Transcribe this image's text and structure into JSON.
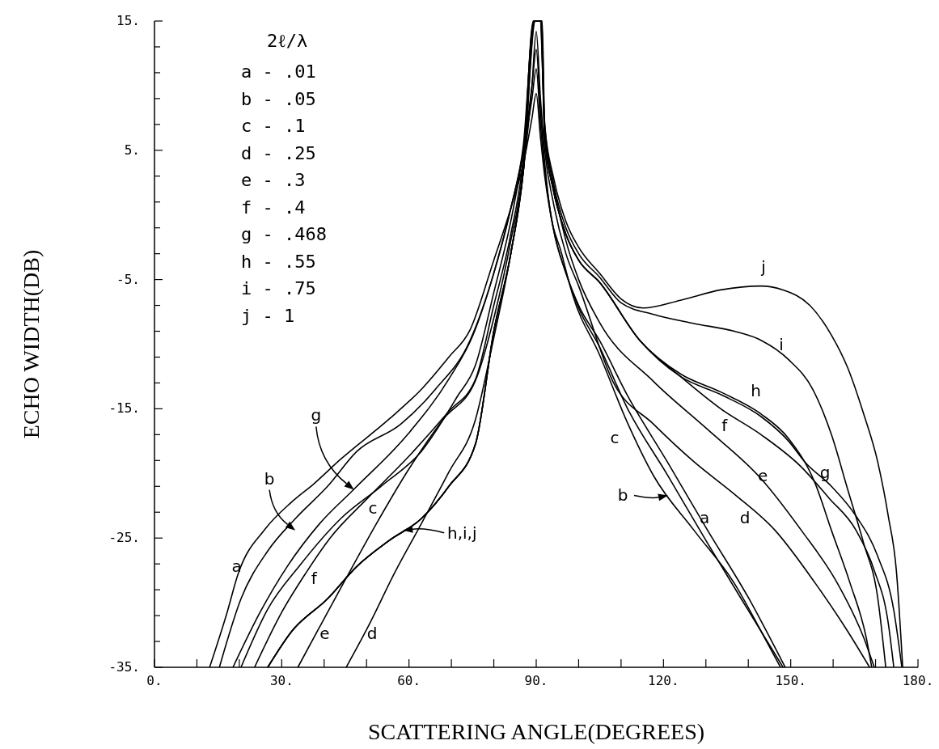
{
  "chart_data": {
    "type": "line",
    "xlabel": "SCATTERING ANGLE(DEGREES)",
    "ylabel": "ECHO WIDTH(DB)",
    "legend_title": "2ℓ/λ",
    "xlim": [
      0,
      180
    ],
    "ylim": [
      -35,
      15
    ],
    "xticks": [
      {
        "value": 0,
        "label": "0."
      },
      {
        "value": 10,
        "label": null
      },
      {
        "value": 20,
        "label": null
      },
      {
        "value": 30,
        "label": "30."
      },
      {
        "value": 40,
        "label": null
      },
      {
        "value": 50,
        "label": null
      },
      {
        "value": 60,
        "label": "60."
      },
      {
        "value": 70,
        "label": null
      },
      {
        "value": 80,
        "label": null
      },
      {
        "value": 90,
        "label": "90."
      },
      {
        "value": 100,
        "label": null
      },
      {
        "value": 110,
        "label": null
      },
      {
        "value": 120,
        "label": "120."
      },
      {
        "value": 130,
        "label": null
      },
      {
        "value": 140,
        "label": null
      },
      {
        "value": 150,
        "label": "150."
      },
      {
        "value": 160,
        "label": null
      },
      {
        "value": 170,
        "label": null
      },
      {
        "value": 180,
        "label": "180."
      }
    ],
    "yticks": [
      {
        "value": -35,
        "label": "-35."
      },
      {
        "value": -33,
        "label": null
      },
      {
        "value": -31,
        "label": null
      },
      {
        "value": -29,
        "label": null
      },
      {
        "value": -27,
        "label": null
      },
      {
        "value": -25,
        "label": "-25."
      },
      {
        "value": -23,
        "label": null
      },
      {
        "value": -21,
        "label": null
      },
      {
        "value": -19,
        "label": null
      },
      {
        "value": -17,
        "label": null
      },
      {
        "value": -15,
        "label": "-15."
      },
      {
        "value": -13,
        "label": null
      },
      {
        "value": -11,
        "label": null
      },
      {
        "value": -9,
        "label": null
      },
      {
        "value": -7,
        "label": null
      },
      {
        "value": -5,
        "label": "-5."
      },
      {
        "value": -3,
        "label": null
      },
      {
        "value": -1,
        "label": null
      },
      {
        "value": 1,
        "label": null
      },
      {
        "value": 3,
        "label": null
      },
      {
        "value": 5,
        "label": "5."
      },
      {
        "value": 7,
        "label": null
      },
      {
        "value": 9,
        "label": null
      },
      {
        "value": 11,
        "label": null
      },
      {
        "value": 13,
        "label": null
      },
      {
        "value": 15,
        "label": "15."
      }
    ],
    "marker": "none",
    "line_style": "solid",
    "series": [
      {
        "name": "a",
        "color": "#000000",
        "x": [
          13,
          16.9,
          19.8,
          26.1,
          32.4,
          37.6,
          43.9,
          55.3,
          62.9,
          69.4,
          74.4,
          80,
          84,
          87,
          89,
          90,
          91,
          92,
          94,
          97,
          100,
          104.9,
          111.4,
          120.9,
          130.4,
          140,
          148.7
        ],
        "values": [
          -35,
          -31,
          -27.7,
          -24.3,
          -22.2,
          -20.8,
          -18.9,
          -15.8,
          -13.5,
          -11,
          -8.9,
          -3.5,
          0.5,
          4,
          7.5,
          9.4,
          6,
          3,
          -1,
          -4.5,
          -7,
          -9.7,
          -13.9,
          -19.1,
          -24.4,
          -29.6,
          -35
        ]
      },
      {
        "name": "b",
        "color": "#000000",
        "x": [
          15.3,
          20.4,
          26.7,
          33.2,
          40.8,
          47.7,
          58,
          66.2,
          74.4,
          80,
          84,
          87,
          89,
          90,
          91,
          92,
          94,
          97,
          100,
          104.9,
          111.4,
          120.9,
          130.4,
          140,
          148.2
        ],
        "values": [
          -35,
          -29.7,
          -26,
          -23.5,
          -21,
          -18.3,
          -16.2,
          -13.5,
          -9.7,
          -4.5,
          0.5,
          5,
          9,
          11.3,
          7,
          3.5,
          -1,
          -4.5,
          -7.2,
          -10.2,
          -14.9,
          -20.1,
          -25.4,
          -30.6,
          -35
        ]
      },
      {
        "name": "c",
        "color": "#000000",
        "x": [
          20.4,
          26.7,
          34.3,
          43.9,
          53.4,
          62.9,
          71.3,
          75.7,
          80,
          84,
          87,
          89,
          90,
          91,
          93,
          96,
          98.6,
          104.9,
          111.4,
          117.7,
          127.2,
          136.7,
          143,
          147.6
        ],
        "values": [
          -35,
          -30.5,
          -27.1,
          -23.5,
          -21,
          -18.3,
          -14.1,
          -11.6,
          -6,
          -0.5,
          5,
          10,
          12.8,
          8,
          1,
          -3,
          -6.2,
          -10.8,
          -16,
          -20.2,
          -24.4,
          -28.5,
          -32.2,
          -35
        ]
      },
      {
        "name": "d",
        "color": "#000000",
        "x": [
          45.2,
          50.3,
          56.6,
          62.9,
          69.4,
          75.7,
          80,
          84,
          87,
          89,
          90,
          91,
          92,
          94,
          97,
          100,
          108.1,
          117.7,
          127.2,
          136.7,
          146.3,
          155.8,
          163.4,
          168.6
        ],
        "values": [
          -35,
          -31.9,
          -27.7,
          -23.9,
          -19.9,
          -15.8,
          -9.5,
          -3,
          3.5,
          10,
          14.2,
          9,
          5,
          1,
          -3,
          -5.5,
          -12.9,
          -16.2,
          -19.1,
          -21.6,
          -24.4,
          -28.5,
          -32.2,
          -35
        ]
      },
      {
        "name": "e",
        "color": "#000000",
        "x": [
          33.8,
          38.9,
          45.2,
          52.3,
          59.9,
          68.1,
          75.7,
          80,
          84,
          87,
          89.3,
          90.9,
          92,
          94,
          97,
          100,
          104.9,
          117.7,
          130.4,
          143,
          152.5,
          161,
          167.2,
          169.7
        ],
        "values": [
          -35,
          -31.9,
          -28.1,
          -23.9,
          -19.7,
          -15.8,
          -12.8,
          -8,
          -2,
          4,
          15,
          15,
          7,
          2.5,
          -2,
          -5,
          -8.3,
          -12.9,
          -16.6,
          -20.4,
          -24.4,
          -28.5,
          -32.7,
          -35
        ]
      },
      {
        "name": "f",
        "color": "#000000",
        "x": [
          23.6,
          29.9,
          35.7,
          41.4,
          50.3,
          59.9,
          69.4,
          75.7,
          80,
          84,
          87,
          89.4,
          91,
          92,
          94,
          97,
          100,
          104.9,
          114.4,
          124,
          133.5,
          143,
          152.5,
          159,
          165.4,
          169.7,
          173,
          174.3
        ],
        "values": [
          -35,
          -30.8,
          -27.7,
          -25,
          -21.9,
          -18.7,
          -15.2,
          -12.7,
          -7,
          -1.5,
          4.5,
          15,
          15,
          6,
          2,
          -1.5,
          -3.5,
          -5.2,
          -9.7,
          -12.5,
          -15,
          -17,
          -19.5,
          -21.9,
          -24.4,
          -27.5,
          -31.6,
          -35
        ]
      },
      {
        "name": "g",
        "color": "#000000",
        "x": [
          18.5,
          24.8,
          31.3,
          38.9,
          47.1,
          59.9,
          69.4,
          75.1,
          80,
          84,
          87,
          89.5,
          91.1,
          92,
          94,
          97,
          100,
          104.9,
          114.4,
          124,
          133.5,
          143,
          149.5,
          153.3,
          159.6,
          165.4,
          170.5,
          174.3,
          176.2
        ],
        "values": [
          -35,
          -30.8,
          -27.2,
          -23.9,
          -21.2,
          -16.9,
          -12.7,
          -9.3,
          -4.5,
          0.5,
          5.5,
          15,
          15,
          6,
          2,
          -1.5,
          -3.5,
          -5.2,
          -9.7,
          -12.5,
          -13.9,
          -15.6,
          -17.5,
          -19.1,
          -21,
          -23.3,
          -26.4,
          -30.6,
          -35
        ]
      },
      {
        "name": "h",
        "color": "#000000",
        "x": [
          26.7,
          32.4,
          40.8,
          47.7,
          55.3,
          62.9,
          69.4,
          75.7,
          80,
          84,
          87,
          89.6,
          91.2,
          92,
          94,
          97,
          100,
          104.9,
          114.4,
          124,
          133.5,
          143,
          149.5,
          155.8,
          159.6,
          164,
          167.8,
          169.1
        ],
        "values": [
          -35,
          -32.2,
          -29.7,
          -27.2,
          -25.2,
          -23.5,
          -21,
          -17.7,
          -9,
          -3,
          3.5,
          15,
          15,
          6,
          2,
          -1.5,
          -3.5,
          -5.2,
          -9.7,
          -12.3,
          -13.7,
          -15.4,
          -17.3,
          -20.8,
          -24.4,
          -28.5,
          -32.7,
          -35
        ]
      },
      {
        "name": "i",
        "color": "#000000",
        "x": [
          26.7,
          32.4,
          40.8,
          47.7,
          55.3,
          62.9,
          69.4,
          75.7,
          80,
          84,
          87,
          89.7,
          91.3,
          92,
          94,
          97,
          100,
          104.9,
          110,
          117.7,
          127.2,
          136.7,
          143,
          149.5,
          155.2,
          159.6,
          163.4,
          167.2,
          170.5,
          172.4
        ],
        "values": [
          -35,
          -32.2,
          -29.7,
          -27.2,
          -25.2,
          -23.5,
          -21,
          -17.7,
          -9,
          -3,
          3.5,
          15,
          15,
          6.5,
          2.5,
          -1,
          -3,
          -4.8,
          -6.8,
          -7.7,
          -8.4,
          -9,
          -9.7,
          -11.2,
          -13.5,
          -17,
          -21.2,
          -25.4,
          -29.6,
          -35
        ]
      },
      {
        "name": "j",
        "color": "#000000",
        "x": [
          26.7,
          32.4,
          40.8,
          47.7,
          55.3,
          62.9,
          69.4,
          75.7,
          80,
          84,
          87,
          89.8,
          91.4,
          92,
          94,
          97,
          100,
          104.9,
          110,
          115.2,
          124,
          133.5,
          143,
          148.2,
          154.5,
          159.6,
          163.4,
          167.2,
          170.5,
          173,
          174.9,
          176.4
        ],
        "values": [
          -35,
          -32.2,
          -29.7,
          -27.2,
          -25.2,
          -23.5,
          -21,
          -17.7,
          -9,
          -3,
          3.5,
          15,
          15,
          7,
          3,
          -0.5,
          -2.5,
          -4.5,
          -6.5,
          -7.2,
          -6.6,
          -5.8,
          -5.5,
          -5.8,
          -7,
          -9.3,
          -11.8,
          -15.4,
          -19.1,
          -23.3,
          -27.5,
          -35
        ]
      }
    ],
    "annotations": [
      "a - .01",
      "b - .05",
      "c - .1",
      "d - .25",
      "e - .3",
      "f - .4",
      "g - .468",
      "h - .55",
      "i - .75",
      "j - 1",
      "h,i,j"
    ]
  }
}
